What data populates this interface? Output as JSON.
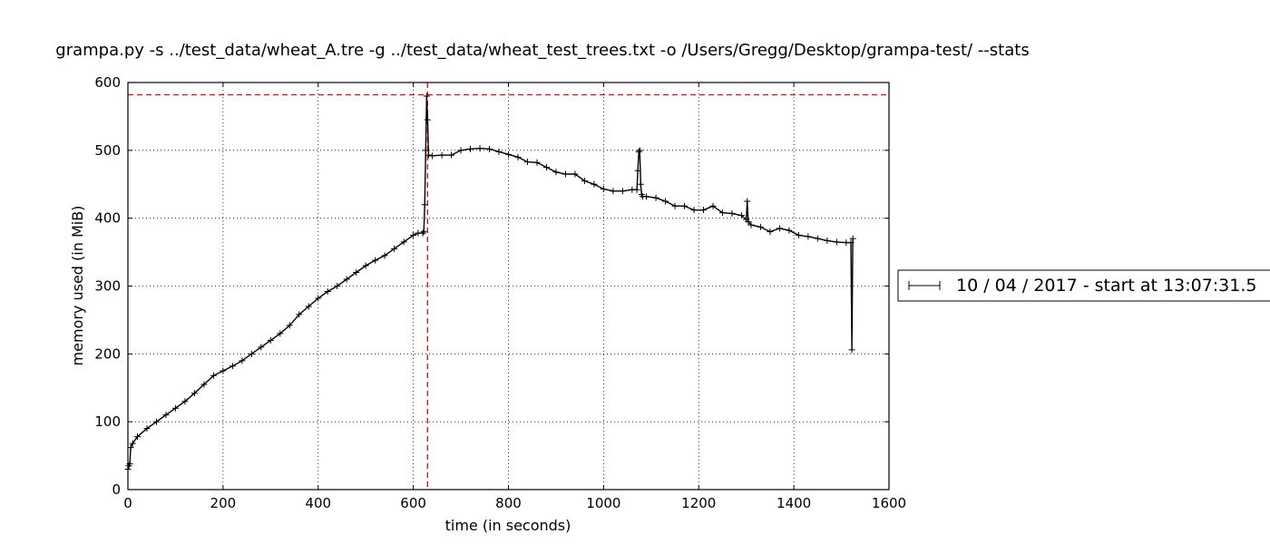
{
  "chart_data": {
    "type": "line",
    "title": "grampa.py -s ../test_data/wheat_A.tre -g ../test_data/wheat_test_trees.txt -o /Users/Gregg/Desktop/grampa-test/ --stats",
    "xlabel": "time (in seconds)",
    "ylabel": "memory used (in MiB)",
    "xlim": [
      0,
      1600
    ],
    "ylim": [
      0,
      600
    ],
    "xticks": [
      0,
      200,
      400,
      600,
      800,
      1000,
      1200,
      1400,
      1600
    ],
    "yticks": [
      0,
      100,
      200,
      300,
      400,
      500,
      600
    ],
    "grid": true,
    "legend_position": "right",
    "series": [
      {
        "name": "10 / 04 / 2017 - start at 13:07:31.5",
        "color": "#000000",
        "marker": "+",
        "x": [
          0,
          2,
          4,
          6,
          10,
          20,
          40,
          60,
          80,
          100,
          120,
          140,
          160,
          180,
          200,
          220,
          240,
          260,
          280,
          300,
          320,
          340,
          360,
          380,
          400,
          420,
          440,
          460,
          480,
          500,
          520,
          540,
          560,
          580,
          600,
          610,
          620,
          622,
          624,
          626,
          628,
          630,
          632,
          640,
          660,
          680,
          700,
          720,
          740,
          760,
          780,
          800,
          820,
          840,
          860,
          880,
          900,
          920,
          940,
          960,
          980,
          1000,
          1020,
          1040,
          1060,
          1070,
          1072,
          1074,
          1076,
          1078,
          1080,
          1082,
          1090,
          1110,
          1130,
          1150,
          1170,
          1190,
          1210,
          1230,
          1250,
          1270,
          1290,
          1300,
          1302,
          1304,
          1310,
          1330,
          1350,
          1370,
          1390,
          1410,
          1430,
          1450,
          1470,
          1490,
          1510,
          1520,
          1522,
          1524
        ],
        "y": [
          30,
          35,
          38,
          62,
          68,
          78,
          90,
          100,
          110,
          120,
          130,
          142,
          155,
          168,
          175,
          182,
          190,
          200,
          210,
          220,
          230,
          242,
          258,
          270,
          282,
          292,
          300,
          310,
          320,
          330,
          338,
          345,
          355,
          365,
          375,
          378,
          378,
          380,
          420,
          500,
          580,
          545,
          493,
          492,
          493,
          493,
          500,
          502,
          503,
          502,
          498,
          494,
          490,
          483,
          482,
          475,
          468,
          465,
          465,
          455,
          450,
          443,
          440,
          440,
          442,
          442,
          470,
          498,
          500,
          450,
          435,
          432,
          432,
          430,
          425,
          418,
          418,
          412,
          412,
          418,
          408,
          407,
          404,
          398,
          425,
          395,
          390,
          387,
          380,
          385,
          382,
          375,
          373,
          370,
          367,
          365,
          364,
          364,
          206,
          370
        ]
      }
    ],
    "reference_lines": [
      {
        "orientation": "horizontal",
        "value": 582,
        "color": "#ff0000",
        "style": "dashed"
      },
      {
        "orientation": "vertical",
        "value": 630,
        "color": "#ff0000",
        "style": "dashed"
      }
    ]
  }
}
